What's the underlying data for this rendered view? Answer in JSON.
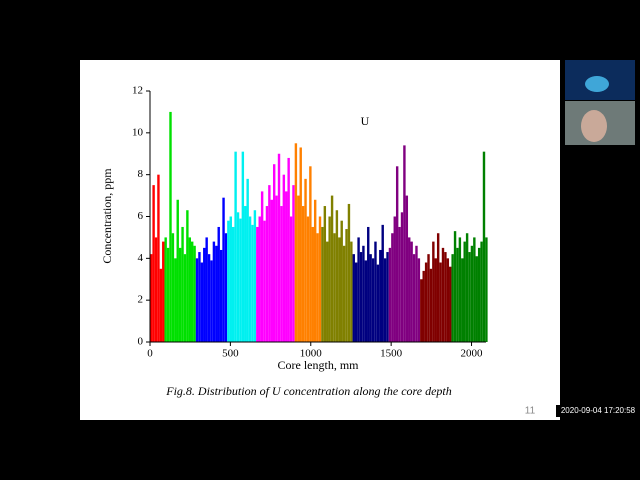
{
  "chart_data": {
    "type": "bar",
    "annotation": "U",
    "xlabel": "Core length, mm",
    "ylabel": "Concentration, ppm",
    "xlim": [
      0,
      2090
    ],
    "ylim": [
      0,
      12
    ],
    "xticks": [
      0,
      500,
      1000,
      1500,
      2000
    ],
    "yticks": [
      0,
      2,
      4,
      6,
      8,
      10,
      12
    ],
    "series": [
      {
        "color": "#ff0000",
        "x": [
          0,
          15,
          30,
          45,
          60,
          75
        ],
        "values": [
          4.2,
          7.5,
          5,
          8,
          3.5,
          4.8
        ]
      },
      {
        "color": "#00e000",
        "x": [
          90,
          105,
          120,
          135,
          150,
          165,
          180,
          195,
          210,
          225,
          240,
          255,
          270
        ],
        "values": [
          5,
          4.5,
          11,
          5.2,
          4,
          6.8,
          4.5,
          5.5,
          4.2,
          6.3,
          5,
          4.8,
          4.6
        ]
      },
      {
        "color": "#0000ff",
        "x": [
          285,
          300,
          315,
          330,
          345,
          360,
          375,
          390,
          405,
          420,
          435,
          450,
          465
        ],
        "values": [
          4,
          4.3,
          3.8,
          4.5,
          5,
          4.2,
          3.9,
          4.8,
          4.6,
          5.5,
          4.4,
          6.9,
          5.2
        ]
      },
      {
        "color": "#00f0f0",
        "x": [
          480,
          495,
          510,
          525,
          540,
          555,
          570,
          585,
          600,
          615,
          630,
          645
        ],
        "values": [
          5.8,
          6,
          5.5,
          9.1,
          6.2,
          5.9,
          9.1,
          6.5,
          7.8,
          6,
          5.6,
          6.3
        ]
      },
      {
        "color": "#ff00ff",
        "x": [
          660,
          675,
          690,
          705,
          720,
          735,
          750,
          765,
          780,
          795,
          810,
          825,
          840,
          855,
          870,
          885
        ],
        "values": [
          5.5,
          6,
          7.2,
          5.8,
          6.5,
          7.5,
          6.8,
          8.5,
          7,
          9,
          6.5,
          8,
          7.2,
          8.8,
          6,
          7.5
        ]
      },
      {
        "color": "#ff8000",
        "x": [
          900,
          915,
          930,
          945,
          960,
          975,
          990,
          1005,
          1020,
          1035,
          1050
        ],
        "values": [
          9.5,
          7,
          9.3,
          6.5,
          7.8,
          6,
          8.4,
          5.5,
          6.8,
          5.2,
          6
        ]
      },
      {
        "color": "#808000",
        "x": [
          1065,
          1080,
          1095,
          1110,
          1125,
          1140,
          1155,
          1170,
          1185,
          1200,
          1215,
          1230,
          1245
        ],
        "values": [
          5.5,
          6.5,
          4.8,
          6,
          7,
          5.2,
          6.3,
          5,
          5.8,
          4.6,
          5.4,
          6.6,
          4.8
        ]
      },
      {
        "color": "#000080",
        "x": [
          1260,
          1275,
          1290,
          1305,
          1320,
          1335,
          1350,
          1365,
          1380,
          1395,
          1410,
          1425,
          1440,
          1455,
          1470
        ],
        "values": [
          4.2,
          3.8,
          5,
          4.3,
          4.6,
          3.9,
          5.5,
          4.2,
          4,
          4.8,
          3.7,
          4.4,
          5.6,
          4,
          4.3
        ]
      },
      {
        "color": "#800080",
        "x": [
          1485,
          1500,
          1515,
          1530,
          1545,
          1560,
          1575,
          1590,
          1605,
          1620,
          1635,
          1650,
          1665
        ],
        "values": [
          4.5,
          5.2,
          6,
          8.4,
          5.5,
          6.2,
          9.4,
          7,
          5,
          4.8,
          4.2,
          4.6,
          4
        ]
      },
      {
        "color": "#800000",
        "x": [
          1680,
          1695,
          1710,
          1725,
          1740,
          1755,
          1770,
          1785,
          1800,
          1815,
          1830,
          1845,
          1860
        ],
        "values": [
          3,
          3.4,
          3.8,
          4.2,
          3.5,
          4.8,
          4,
          5.2,
          3.8,
          4.5,
          4.3,
          4,
          3.6
        ]
      },
      {
        "color": "#008000",
        "x": [
          1875,
          1890,
          1905,
          1920,
          1935,
          1950,
          1965,
          1980,
          1995,
          2010,
          2025,
          2040,
          2055,
          2070,
          2085
        ],
        "values": [
          4.2,
          5.3,
          4.5,
          5,
          4,
          4.8,
          5.2,
          4.3,
          4.6,
          5,
          4.1,
          4.5,
          4.8,
          9.1,
          5
        ]
      }
    ]
  },
  "caption": "Fig.8. Distribution of U concentration along the core depth",
  "slide_number": "11",
  "timestamp": "2020-09-04 17:20:58"
}
